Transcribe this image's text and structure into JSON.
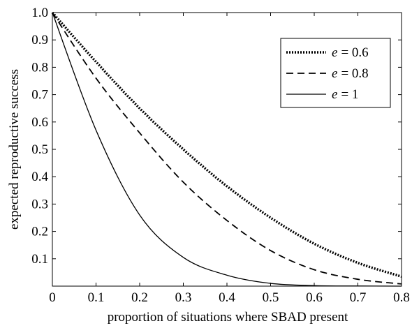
{
  "chart_data": {
    "type": "line",
    "xlabel": "proportion of situations where SBAD present",
    "ylabel": "expected reproductive success",
    "xlim": [
      0,
      0.8
    ],
    "ylim": [
      0,
      1.0
    ],
    "xticks": [
      "0",
      "0.1",
      "0.2",
      "0.3",
      "0.4",
      "0.5",
      "0.6",
      "0.7",
      "0.8"
    ],
    "yticks": [
      "0.1",
      "0.2",
      "0.3",
      "0.4",
      "0.5",
      "0.6",
      "0.7",
      "0.8",
      "0.9",
      "1.0"
    ],
    "grid": false,
    "legend_position": "top-right",
    "x": [
      0,
      0.1,
      0.2,
      0.3,
      0.4,
      0.5,
      0.6,
      0.7,
      0.8
    ],
    "series": [
      {
        "name": "e = 0.6",
        "legend_var": "e",
        "legend_value": "= 0.6",
        "style": "dotted",
        "values": [
          1.0,
          0.82,
          0.65,
          0.5,
          0.365,
          0.25,
          0.155,
          0.085,
          0.035
        ]
      },
      {
        "name": "e = 0.8",
        "legend_var": "e",
        "legend_value": "= 0.8",
        "style": "dashed",
        "values": [
          1.0,
          0.76,
          0.56,
          0.38,
          0.24,
          0.13,
          0.06,
          0.025,
          0.008
        ]
      },
      {
        "name": "e = 1",
        "legend_var": "e",
        "legend_value": "= 1",
        "style": "solid",
        "values": [
          1.0,
          0.57,
          0.26,
          0.105,
          0.04,
          0.01,
          0.002,
          0.0005,
          0.0
        ]
      }
    ]
  }
}
